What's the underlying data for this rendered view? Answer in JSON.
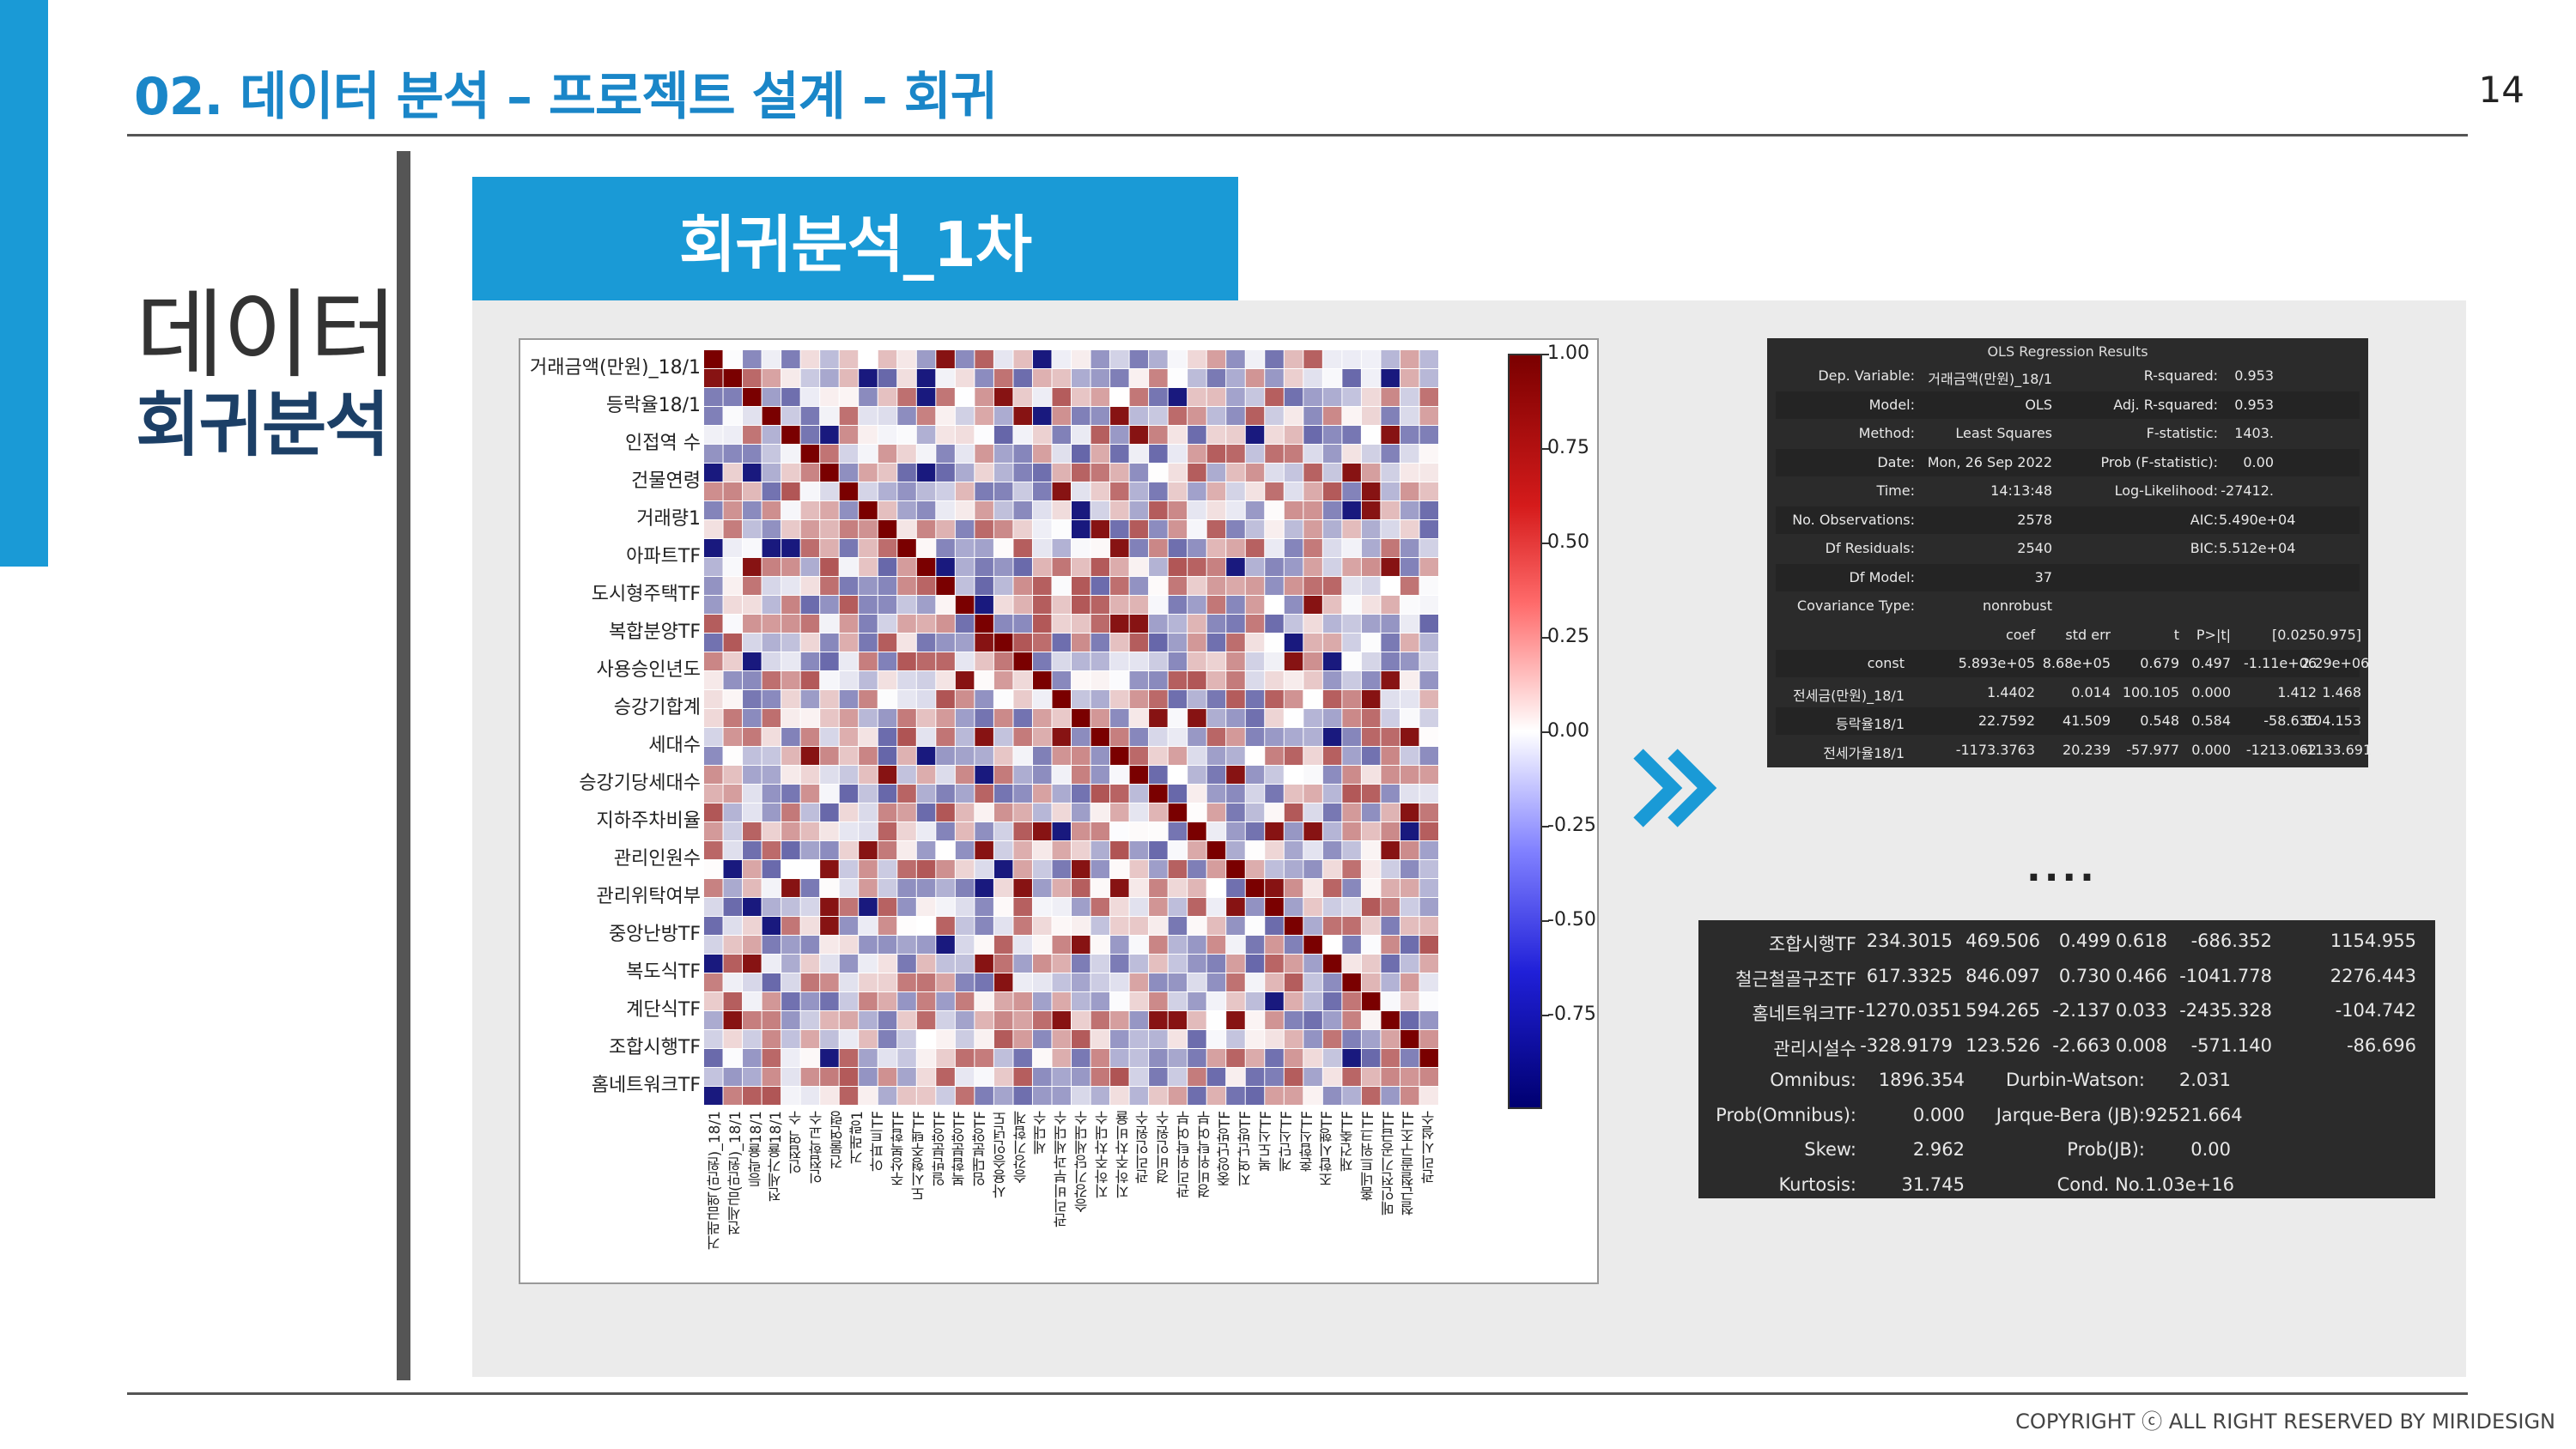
{
  "header": {
    "title": "02. 데이터 분석 – 프로젝트 설계 – 회귀",
    "page_number": "14"
  },
  "section": {
    "label_line1": "데이터",
    "label_line2": "회귀분석"
  },
  "panel": {
    "title": "회귀분석_1차"
  },
  "heatmap": {
    "row_labels": [
      "거래금액(만원)_18/1",
      "등락율18/1",
      "인접역 수",
      "건물연령",
      "거래량1",
      "아파트TF",
      "도시형주택TF",
      "복합분양TF",
      "사용승인년도",
      "승강기합계",
      "세대수",
      "승강기당세대수",
      "지하주차비율",
      "관리인원수",
      "관리위탁여부",
      "중앙난방TF",
      "복도식TF",
      "계단식TF",
      "조합시행TF",
      "홈네트워크TF"
    ],
    "col_labels": [
      "거래금액(만원)_18/1",
      "전세금(만원)_18/1",
      "등락율18/1",
      "전세가율18/1",
      "인접역 수",
      "인접학교수",
      "건물연령",
      "거래량1",
      "아파트TF",
      "주상복합TF",
      "도시형주택TF",
      "일반분양TF",
      "복합분양TF",
      "임대분양TF",
      "사용승인년도",
      "승강기합계",
      "세대수",
      "관리비부과세대수",
      "승강기당세대수",
      "지하주차대수",
      "지하주차비율",
      "관리인원수",
      "경비인원수",
      "관리위탁여부",
      "경비위탁여부",
      "중앙난방TF",
      "지역난방TF",
      "복도식TF",
      "계단식TF",
      "혼합식TF",
      "조합시행TF",
      "재건축TF",
      "홈네트워크TF",
      "메인전기공급TF",
      "철근철골구조TF",
      "관리시설수"
    ],
    "colorbar_ticks": [
      "1.00",
      "0.75",
      "0.50",
      "0.25",
      "0.00",
      "-0.25",
      "-0.50",
      "-0.75"
    ],
    "colorbar_tick_values": [
      1.0,
      0.75,
      0.5,
      0.25,
      0.0,
      -0.25,
      -0.5,
      -0.75
    ],
    "colorbar_range": [
      -1.0,
      1.0
    ],
    "colors": {
      "high": "#7a0000",
      "mid": "#ffffff",
      "low": "#000070"
    }
  },
  "ols_top": {
    "title": "OLS Regression Results",
    "summary": [
      [
        "Dep. Variable:",
        "거래금액(만원)_18/1",
        "R-squared:",
        "0.953"
      ],
      [
        "Model:",
        "OLS",
        "Adj. R-squared:",
        "0.953"
      ],
      [
        "Method:",
        "Least Squares",
        "F-statistic:",
        "1403."
      ],
      [
        "Date:",
        "Mon, 26 Sep 2022",
        "Prob (F-statistic):",
        "0.00"
      ],
      [
        "Time:",
        "14:13:48",
        "Log-Likelihood:",
        "-27412."
      ],
      [
        "No. Observations:",
        "2578",
        "AIC:",
        "5.490e+04"
      ],
      [
        "Df Residuals:",
        "2540",
        "BIC:",
        "5.512e+04"
      ],
      [
        "Df Model:",
        "37",
        "",
        ""
      ],
      [
        "Covariance Type:",
        "nonrobust",
        "",
        ""
      ]
    ],
    "coef_header": [
      "",
      "coef",
      "std err",
      "t",
      "P>|t|",
      "[0.025",
      "0.975]"
    ],
    "coef_rows": [
      [
        "const",
        "5.893e+05",
        "8.68e+05",
        "0.679",
        "0.497",
        "-1.11e+06",
        "2.29e+06"
      ],
      [
        "전세금(만원)_18/1",
        "1.4402",
        "0.014",
        "100.105",
        "0.000",
        "1.412",
        "1.468"
      ],
      [
        "등락율18/1",
        "22.7592",
        "41.509",
        "0.548",
        "0.584",
        "-58.635",
        "104.153"
      ],
      [
        "전세가율18/1",
        "-1173.3763",
        "20.239",
        "-57.977",
        "0.000",
        "-1213.062",
        "-1133.691"
      ]
    ]
  },
  "ellipsis": "....",
  "ols_bottom": {
    "coef_rows": [
      [
        "조합시행TF",
        "234.3015",
        "469.506",
        "0.499",
        "0.618",
        "-686.352",
        "1154.955"
      ],
      [
        "철근철골구조TF",
        "617.3325",
        "846.097",
        "0.730",
        "0.466",
        "-1041.778",
        "2276.443"
      ],
      [
        "홈네트워크TF",
        "-1270.0351",
        "594.265",
        "-2.137",
        "0.033",
        "-2435.328",
        "-104.742"
      ],
      [
        "관리시설수",
        "-328.9179",
        "123.526",
        "-2.663",
        "0.008",
        "-571.140",
        "-86.696"
      ]
    ],
    "diagnostics": [
      [
        "Omnibus:",
        "1896.354",
        "Durbin-Watson:",
        "2.031"
      ],
      [
        "Prob(Omnibus):",
        "0.000",
        "Jarque-Bera (JB):",
        "92521.664"
      ],
      [
        "Skew:",
        "2.962",
        "Prob(JB):",
        "0.00"
      ],
      [
        "Kurtosis:",
        "31.745",
        "Cond. No.",
        "1.03e+16"
      ]
    ]
  },
  "footer": {
    "copyright": "COPYRIGHT ⓒ ALL RIGHT RESERVED BY MIRIDESIGN"
  }
}
